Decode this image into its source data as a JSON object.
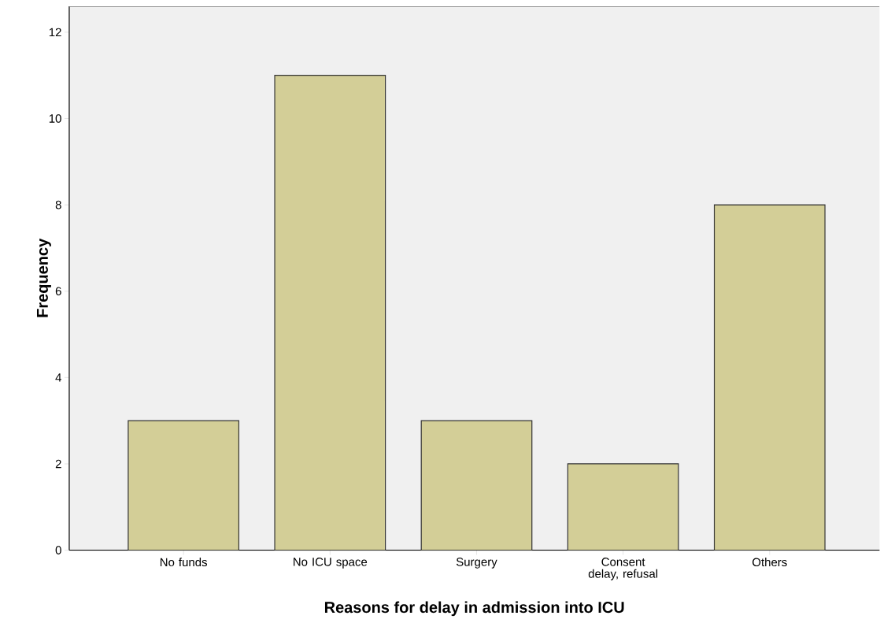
{
  "chart_data": {
    "type": "bar",
    "xlabel": "Reasons for delay in admission into ICU",
    "ylabel": "Frequency",
    "categories": [
      "No funds",
      "No ICU space",
      "Surgery",
      "Consent delay, refusal",
      "Others"
    ],
    "values": [
      3,
      11,
      3,
      2,
      8
    ],
    "color": "#d3ce97",
    "ylim": [
      0,
      12.6
    ],
    "yticks": [
      0,
      2,
      4,
      6,
      8,
      10,
      12
    ],
    "grid": false
  }
}
